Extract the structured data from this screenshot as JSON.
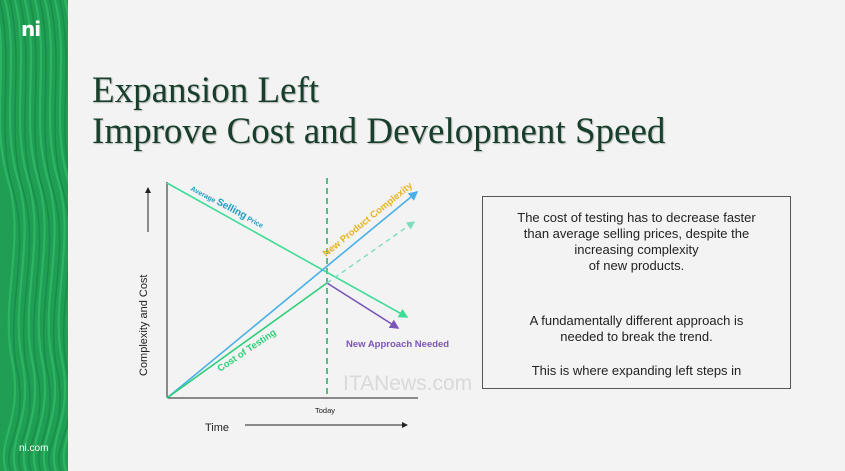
{
  "branding": {
    "logo_text": "ni",
    "footer_link": "ni.com"
  },
  "title": {
    "line1": "Expansion Left",
    "line2": "Improve Cost and Development Speed"
  },
  "diagram": {
    "y_axis_label": "Complexity and Cost",
    "x_axis_label": "Time",
    "today_label": "Today",
    "average_selling_label": {
      "part1": "Average ",
      "part2": "Selling",
      "part3": " Price"
    },
    "new_product_complexity_label": "New Product Complexity",
    "cost_of_testing_label": "Cost of Testing",
    "new_approach_label": "New Approach Needed",
    "colors": {
      "average_selling_price": "#3ddc97",
      "new_product_complexity": "#4ab0e6",
      "complexity_label": "#e6b422",
      "cost_of_testing": "#2ecf7a",
      "new_approach": "#7b55b7",
      "today_line": "#27a86a"
    }
  },
  "textbox": {
    "paragraph1": [
      "The cost of testing has to decrease faster",
      "than average selling prices, despite the",
      "increasing complexity",
      "of new products."
    ],
    "paragraph2": [
      "A fundamentally different approach is",
      "needed to break the trend."
    ],
    "paragraph3": "This is where expanding left steps in"
  },
  "watermark": "ITANews.com"
}
